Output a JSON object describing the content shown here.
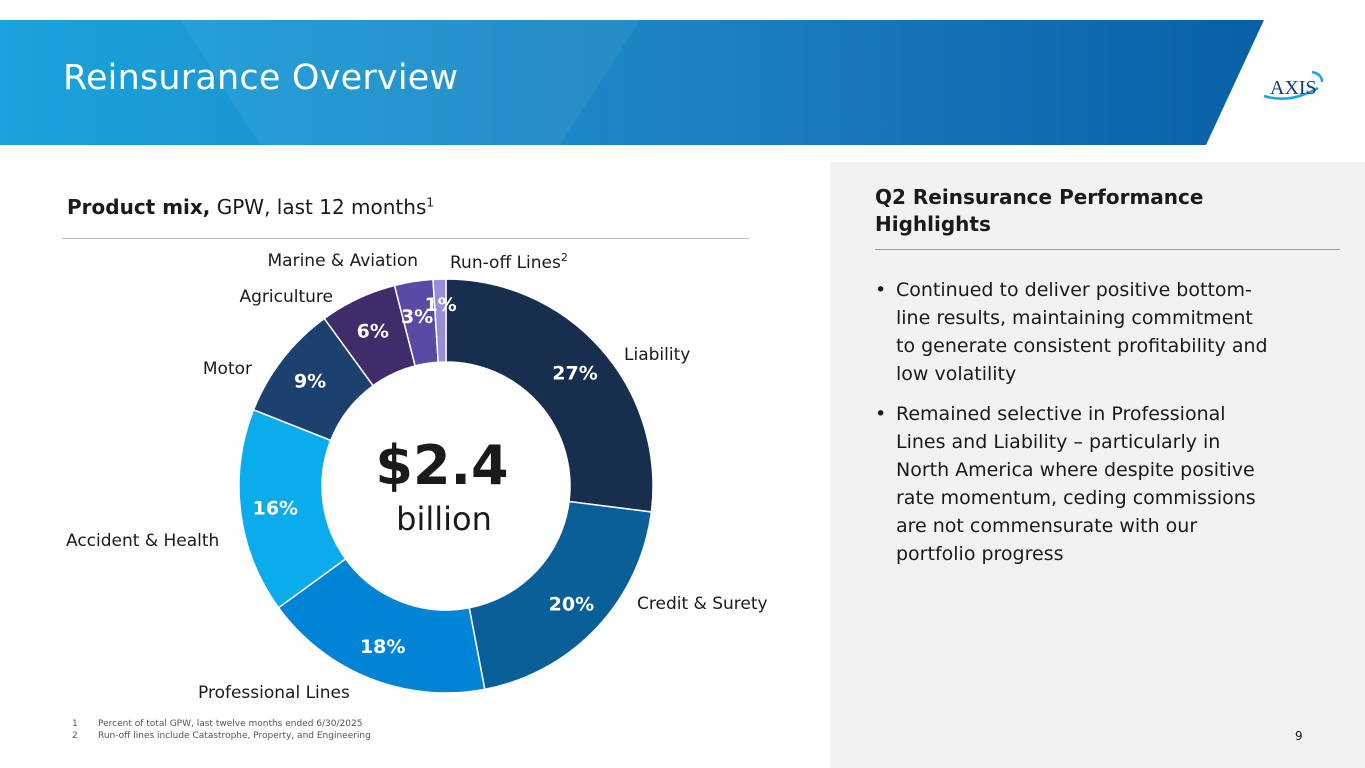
{
  "header": {
    "title": "Reinsurance Overview",
    "logo_text": "AXIS"
  },
  "left": {
    "subtitle_bold": "Product mix,",
    "subtitle_rest": " GPW, last 12 months",
    "subtitle_sup": "1"
  },
  "chart_data": {
    "type": "pie",
    "title": "Product mix, GPW, last 12 months",
    "center_value": "$2.4",
    "center_unit": "billion",
    "slices": [
      {
        "name": "Liability",
        "label": "Liability",
        "sup": "",
        "value": 27,
        "pct_text": "27%",
        "color": "#172e4f"
      },
      {
        "name": "Credit & Surety",
        "label": "Credit & Surety",
        "sup": "",
        "value": 20,
        "pct_text": "20%",
        "color": "#0a5f98"
      },
      {
        "name": "Professional Lines",
        "label": "Professional Lines",
        "sup": "",
        "value": 18,
        "pct_text": "18%",
        "color": "#0284d6"
      },
      {
        "name": "Accident & Health",
        "label": "Accident & Health",
        "sup": "",
        "value": 16,
        "pct_text": "16%",
        "color": "#0aacec"
      },
      {
        "name": "Motor",
        "label": "Motor",
        "sup": "",
        "value": 9,
        "pct_text": "9%",
        "color": "#1c416e"
      },
      {
        "name": "Agriculture",
        "label": "Agriculture",
        "sup": "",
        "value": 6,
        "pct_text": "6%",
        "color": "#3f2c68"
      },
      {
        "name": "Marine & Aviation",
        "label": "Marine & Aviation",
        "sup": "",
        "value": 3,
        "pct_text": "3%",
        "color": "#5a4aa3"
      },
      {
        "name": "Run-off Lines",
        "label": "Run-off Lines",
        "sup": "2",
        "value": 1,
        "pct_text": "1%",
        "color": "#9b8dd3"
      }
    ]
  },
  "panel": {
    "title": "Q2 Reinsurance Performance Highlights",
    "bullets": [
      "Continued to deliver positive bottom-line results, maintaining commitment to generate consistent profitability and low volatility",
      "Remained selective in Professional Lines and Liability – particularly in North America where despite positive rate momentum, ceding commissions are not commensurate with our portfolio progress"
    ]
  },
  "footnotes": [
    {
      "num": "1",
      "text": "Percent of total GPW, last twelve months ended 6/30/2025"
    },
    {
      "num": "2",
      "text": "Run-off lines include Catastrophe, Property, and Engineering"
    }
  ],
  "page_number": "9",
  "colors": {
    "banner_left": "#1aa3dc",
    "banner_right": "#0a62a8",
    "panel_bg": "#f2f2f2"
  }
}
